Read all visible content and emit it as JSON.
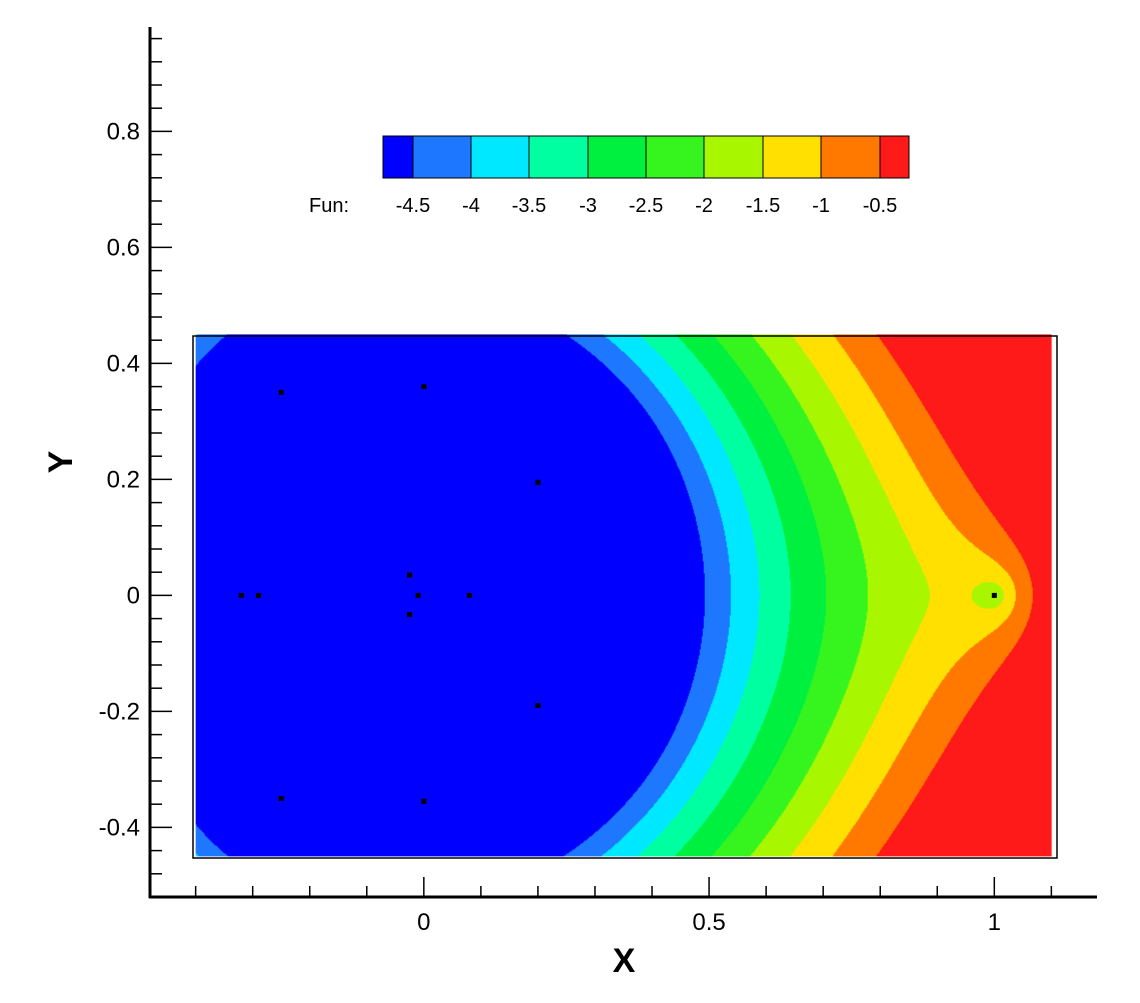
{
  "chart_data": {
    "type": "heatmap",
    "xlabel": "X",
    "ylabel": "Y",
    "xlim": [
      -0.48,
      1.18
    ],
    "ylim": [
      -0.52,
      0.98
    ],
    "domain": {
      "x": [
        -0.4,
        1.1
      ],
      "y": [
        -0.45,
        0.45
      ]
    },
    "x_ticks": [
      {
        "value": 0,
        "label": "0"
      },
      {
        "value": 0.5,
        "label": "0.5"
      },
      {
        "value": 1,
        "label": "1"
      }
    ],
    "y_ticks": [
      {
        "value": 0.8,
        "label": "0.8"
      },
      {
        "value": 0.6,
        "label": "0.6"
      },
      {
        "value": 0.4,
        "label": "0.4"
      },
      {
        "value": 0.2,
        "label": "0.2"
      },
      {
        "value": 0,
        "label": "0"
      },
      {
        "value": -0.2,
        "label": "-0.2"
      },
      {
        "value": -0.4,
        "label": "-0.4"
      }
    ],
    "x_minor_step": 0.1,
    "y_minor_step": 0.04,
    "legend": {
      "title": "Fun:",
      "placement": "top-center",
      "labels": [
        "-4.5",
        "-4",
        "-3.5",
        "-3",
        "-2.5",
        "-2",
        "-1.5",
        "-1",
        "-0.5"
      ],
      "colors": [
        "#0000ff",
        "#1e78ff",
        "#00e8ff",
        "#00ffa0",
        "#00f040",
        "#36f51e",
        "#a8f700",
        "#ffe000",
        "#ff7800",
        "#ff1a1a"
      ]
    },
    "contour_levels": [
      -4.5,
      -4,
      -3.5,
      -3,
      -2.5,
      -2,
      -1.5,
      -1,
      -0.5
    ],
    "sources": [
      {
        "x": -0.25,
        "y": 0.35
      },
      {
        "x": 0.0,
        "y": 0.36
      },
      {
        "x": 0.2,
        "y": 0.195
      },
      {
        "x": -0.32,
        "y": 0.0
      },
      {
        "x": -0.29,
        "y": 0.0
      },
      {
        "x": -0.025,
        "y": 0.035
      },
      {
        "x": -0.01,
        "y": 0.0
      },
      {
        "x": -0.025,
        "y": -0.033
      },
      {
        "x": 0.08,
        "y": 0.0
      },
      {
        "x": 0.2,
        "y": -0.19
      },
      {
        "x": -0.25,
        "y": -0.35
      },
      {
        "x": 0.0,
        "y": -0.355
      },
      {
        "x": 1.0,
        "y": 0.0
      }
    ]
  }
}
